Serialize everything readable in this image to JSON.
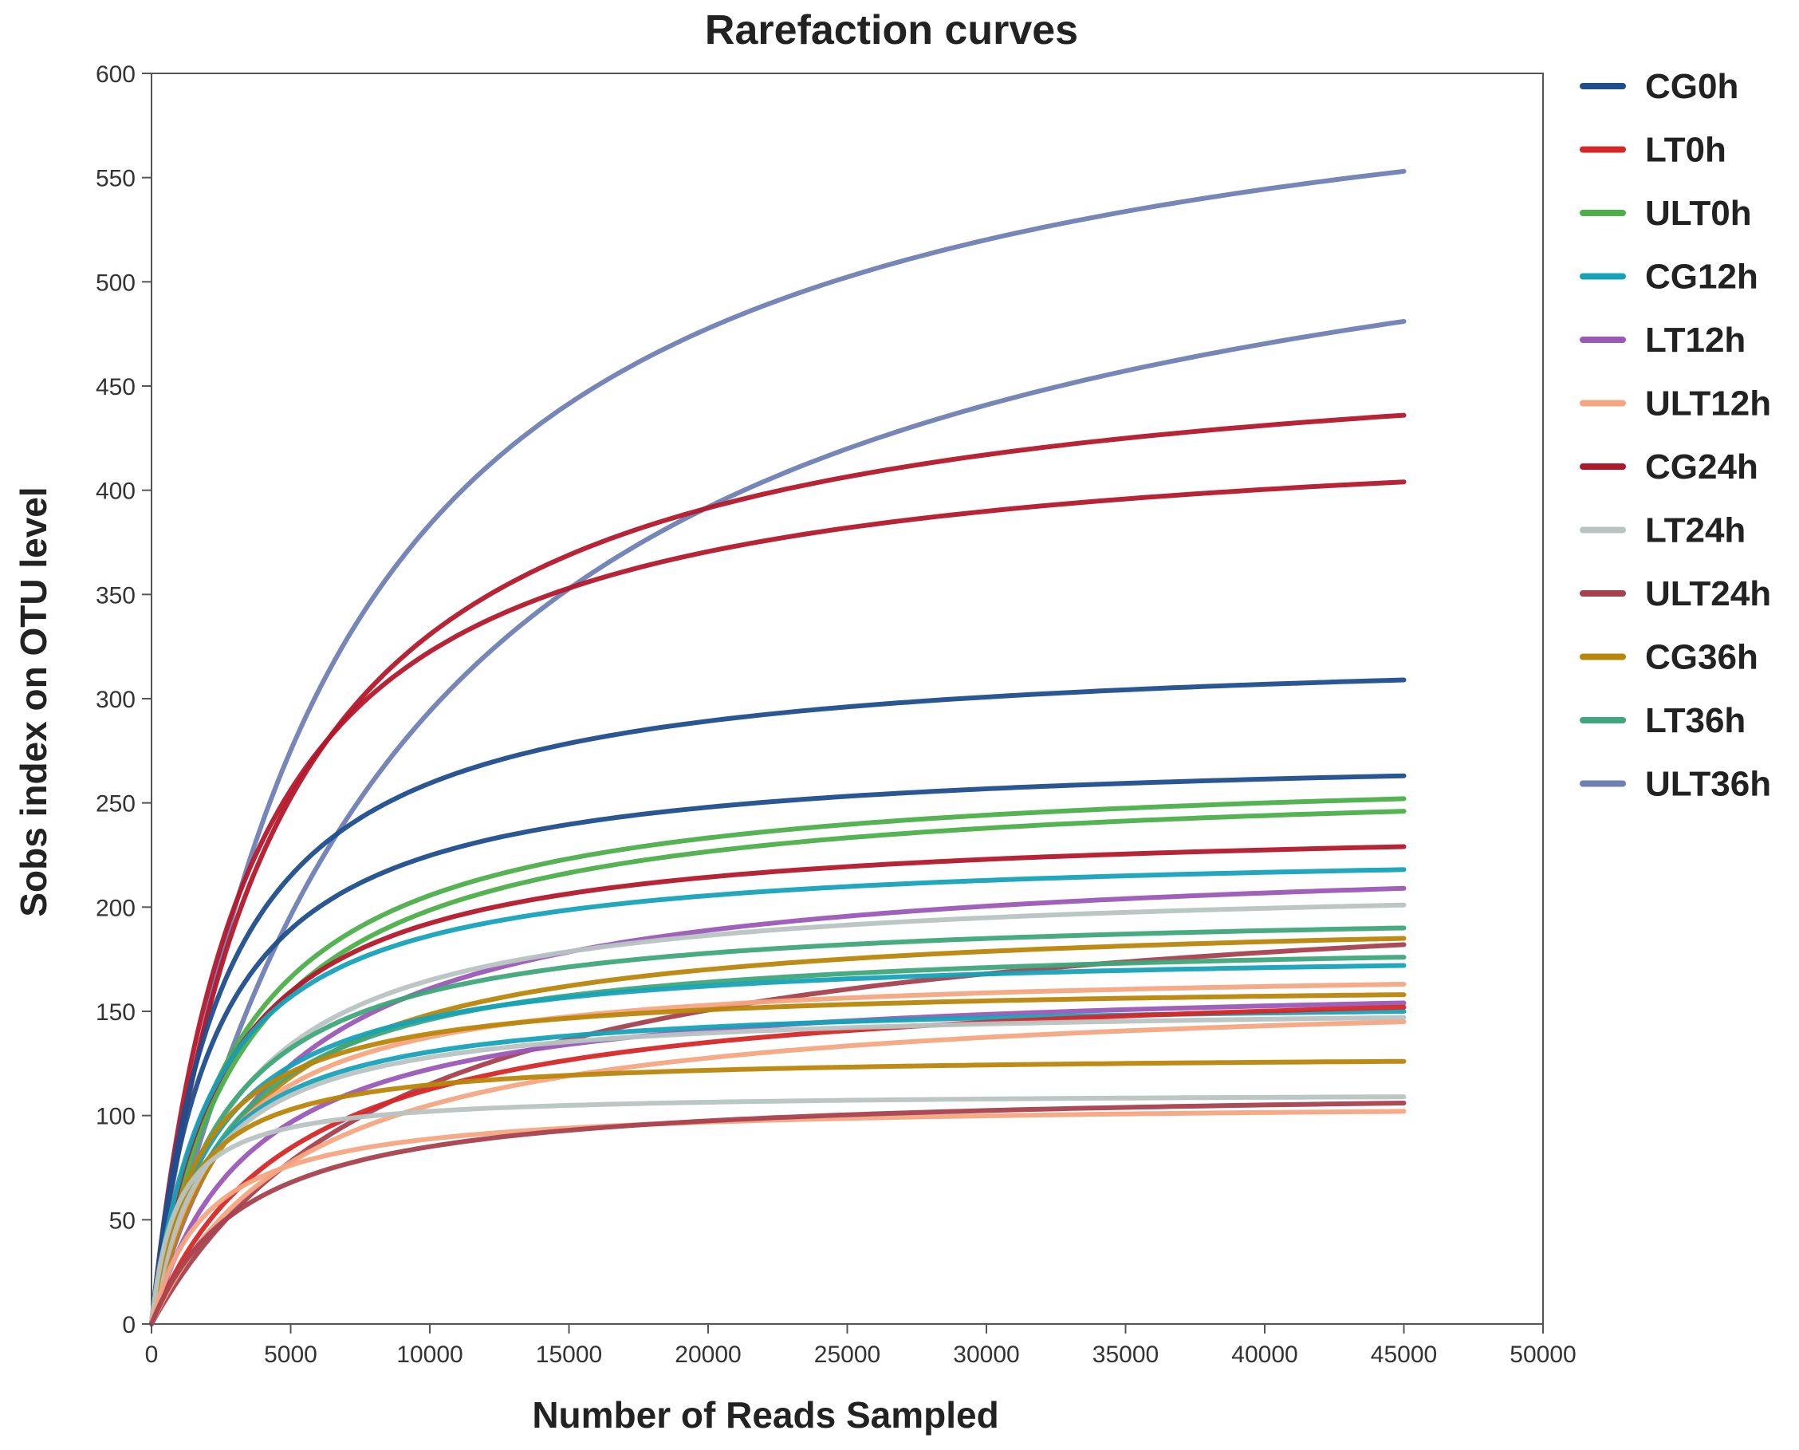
{
  "chart_data": {
    "type": "line",
    "title": "Rarefaction curves",
    "xlabel": "Number of Reads Sampled",
    "ylabel": "Sobs index on OTU level",
    "xlim": [
      0,
      50000
    ],
    "ylim": [
      0,
      600
    ],
    "xticks": [
      0,
      5000,
      10000,
      15000,
      20000,
      25000,
      30000,
      35000,
      40000,
      45000,
      50000
    ],
    "yticks": [
      0,
      50,
      100,
      150,
      200,
      250,
      300,
      350,
      400,
      450,
      500,
      550,
      600
    ],
    "xtick_labels": [
      "0",
      "5000",
      "10000",
      "15000",
      "20000",
      "25000",
      "30000",
      "35000",
      "40000",
      "45000",
      "50000"
    ],
    "ytick_labels": [
      "0",
      "50",
      "100",
      "150",
      "200",
      "250",
      "300",
      "350",
      "400",
      "450",
      "500",
      "550",
      "600"
    ],
    "grid": false,
    "legend_position": "right",
    "x_max_sampled": 45000,
    "legend": [
      {
        "name": "CG0h",
        "color": "#1f4e8c"
      },
      {
        "name": "LT0h",
        "color": "#d62728"
      },
      {
        "name": "ULT0h",
        "color": "#4daf4a"
      },
      {
        "name": "CG12h",
        "color": "#17a2b8"
      },
      {
        "name": "LT12h",
        "color": "#9b59b6"
      },
      {
        "name": "ULT12h",
        "color": "#f4a582"
      },
      {
        "name": "CG24h",
        "color": "#b2182b"
      },
      {
        "name": "LT24h",
        "color": "#b8c4c2"
      },
      {
        "name": "ULT24h",
        "color": "#a8414f"
      },
      {
        "name": "CG36h",
        "color": "#b8860b"
      },
      {
        "name": "LT36h",
        "color": "#3fa77a"
      },
      {
        "name": "ULT36h",
        "color": "#6f7fb3"
      }
    ],
    "series": [
      {
        "name": "ULT36h",
        "color": "#6f7fb3",
        "final": 553,
        "half_sat": 6500
      },
      {
        "name": "ULT36h",
        "color": "#6f7fb3",
        "final": 481,
        "half_sat": 10000
      },
      {
        "name": "CG24h",
        "color": "#b2182b",
        "final": 436,
        "half_sat": 4500
      },
      {
        "name": "CG24h",
        "color": "#b2182b",
        "final": 404,
        "half_sat": 3500
      },
      {
        "name": "CG0h",
        "color": "#1f4e8c",
        "final": 309,
        "half_sat": 2600
      },
      {
        "name": "CG0h",
        "color": "#1f4e8c",
        "final": 263,
        "half_sat": 2300
      },
      {
        "name": "ULT0h",
        "color": "#4daf4a",
        "final": 252,
        "half_sat": 3100
      },
      {
        "name": "ULT0h",
        "color": "#4daf4a",
        "final": 246,
        "half_sat": 3300
      },
      {
        "name": "CG24h",
        "color": "#b2182b",
        "final": 229,
        "half_sat": 2600
      },
      {
        "name": "CG12h",
        "color": "#17a2b8",
        "final": 218,
        "half_sat": 2300
      },
      {
        "name": "LT12h",
        "color": "#9b59b6",
        "final": 209,
        "half_sat": 4200
      },
      {
        "name": "LT24h",
        "color": "#b8c4c2",
        "final": 201,
        "half_sat": 3000
      },
      {
        "name": "LT36h",
        "color": "#3fa77a",
        "final": 190,
        "half_sat": 2600
      },
      {
        "name": "CG36h",
        "color": "#b8860b",
        "final": 185,
        "half_sat": 3400
      },
      {
        "name": "ULT24h",
        "color": "#a8414f",
        "final": 182,
        "half_sat": 9000
      },
      {
        "name": "LT36h",
        "color": "#3fa77a",
        "final": 176,
        "half_sat": 2800
      },
      {
        "name": "CG12h",
        "color": "#17a2b8",
        "final": 172,
        "half_sat": 2300
      },
      {
        "name": "ULT12h",
        "color": "#f4a582",
        "final": 163,
        "half_sat": 2500
      },
      {
        "name": "CG36h",
        "color": "#b8860b",
        "final": 158,
        "half_sat": 1800
      },
      {
        "name": "LT12h",
        "color": "#9b59b6",
        "final": 154,
        "half_sat": 3600
      },
      {
        "name": "CG12h",
        "color": "#17a2b8",
        "final": 150,
        "half_sat": 2000
      },
      {
        "name": "LT0h",
        "color": "#d62728",
        "final": 152,
        "half_sat": 5000
      },
      {
        "name": "LT24h",
        "color": "#b8c4c2",
        "final": 147,
        "half_sat": 2000
      },
      {
        "name": "ULT12h",
        "color": "#f4a582",
        "final": 145,
        "half_sat": 5500
      },
      {
        "name": "CG36h",
        "color": "#b8860b",
        "final": 126,
        "half_sat": 1300
      },
      {
        "name": "LT24h",
        "color": "#b8c4c2",
        "final": 109,
        "half_sat": 900
      },
      {
        "name": "ULT12h",
        "color": "#f4a582",
        "final": 102,
        "half_sat": 2000
      },
      {
        "name": "ULT24h",
        "color": "#a8414f",
        "final": 106,
        "half_sat": 3400
      }
    ]
  }
}
